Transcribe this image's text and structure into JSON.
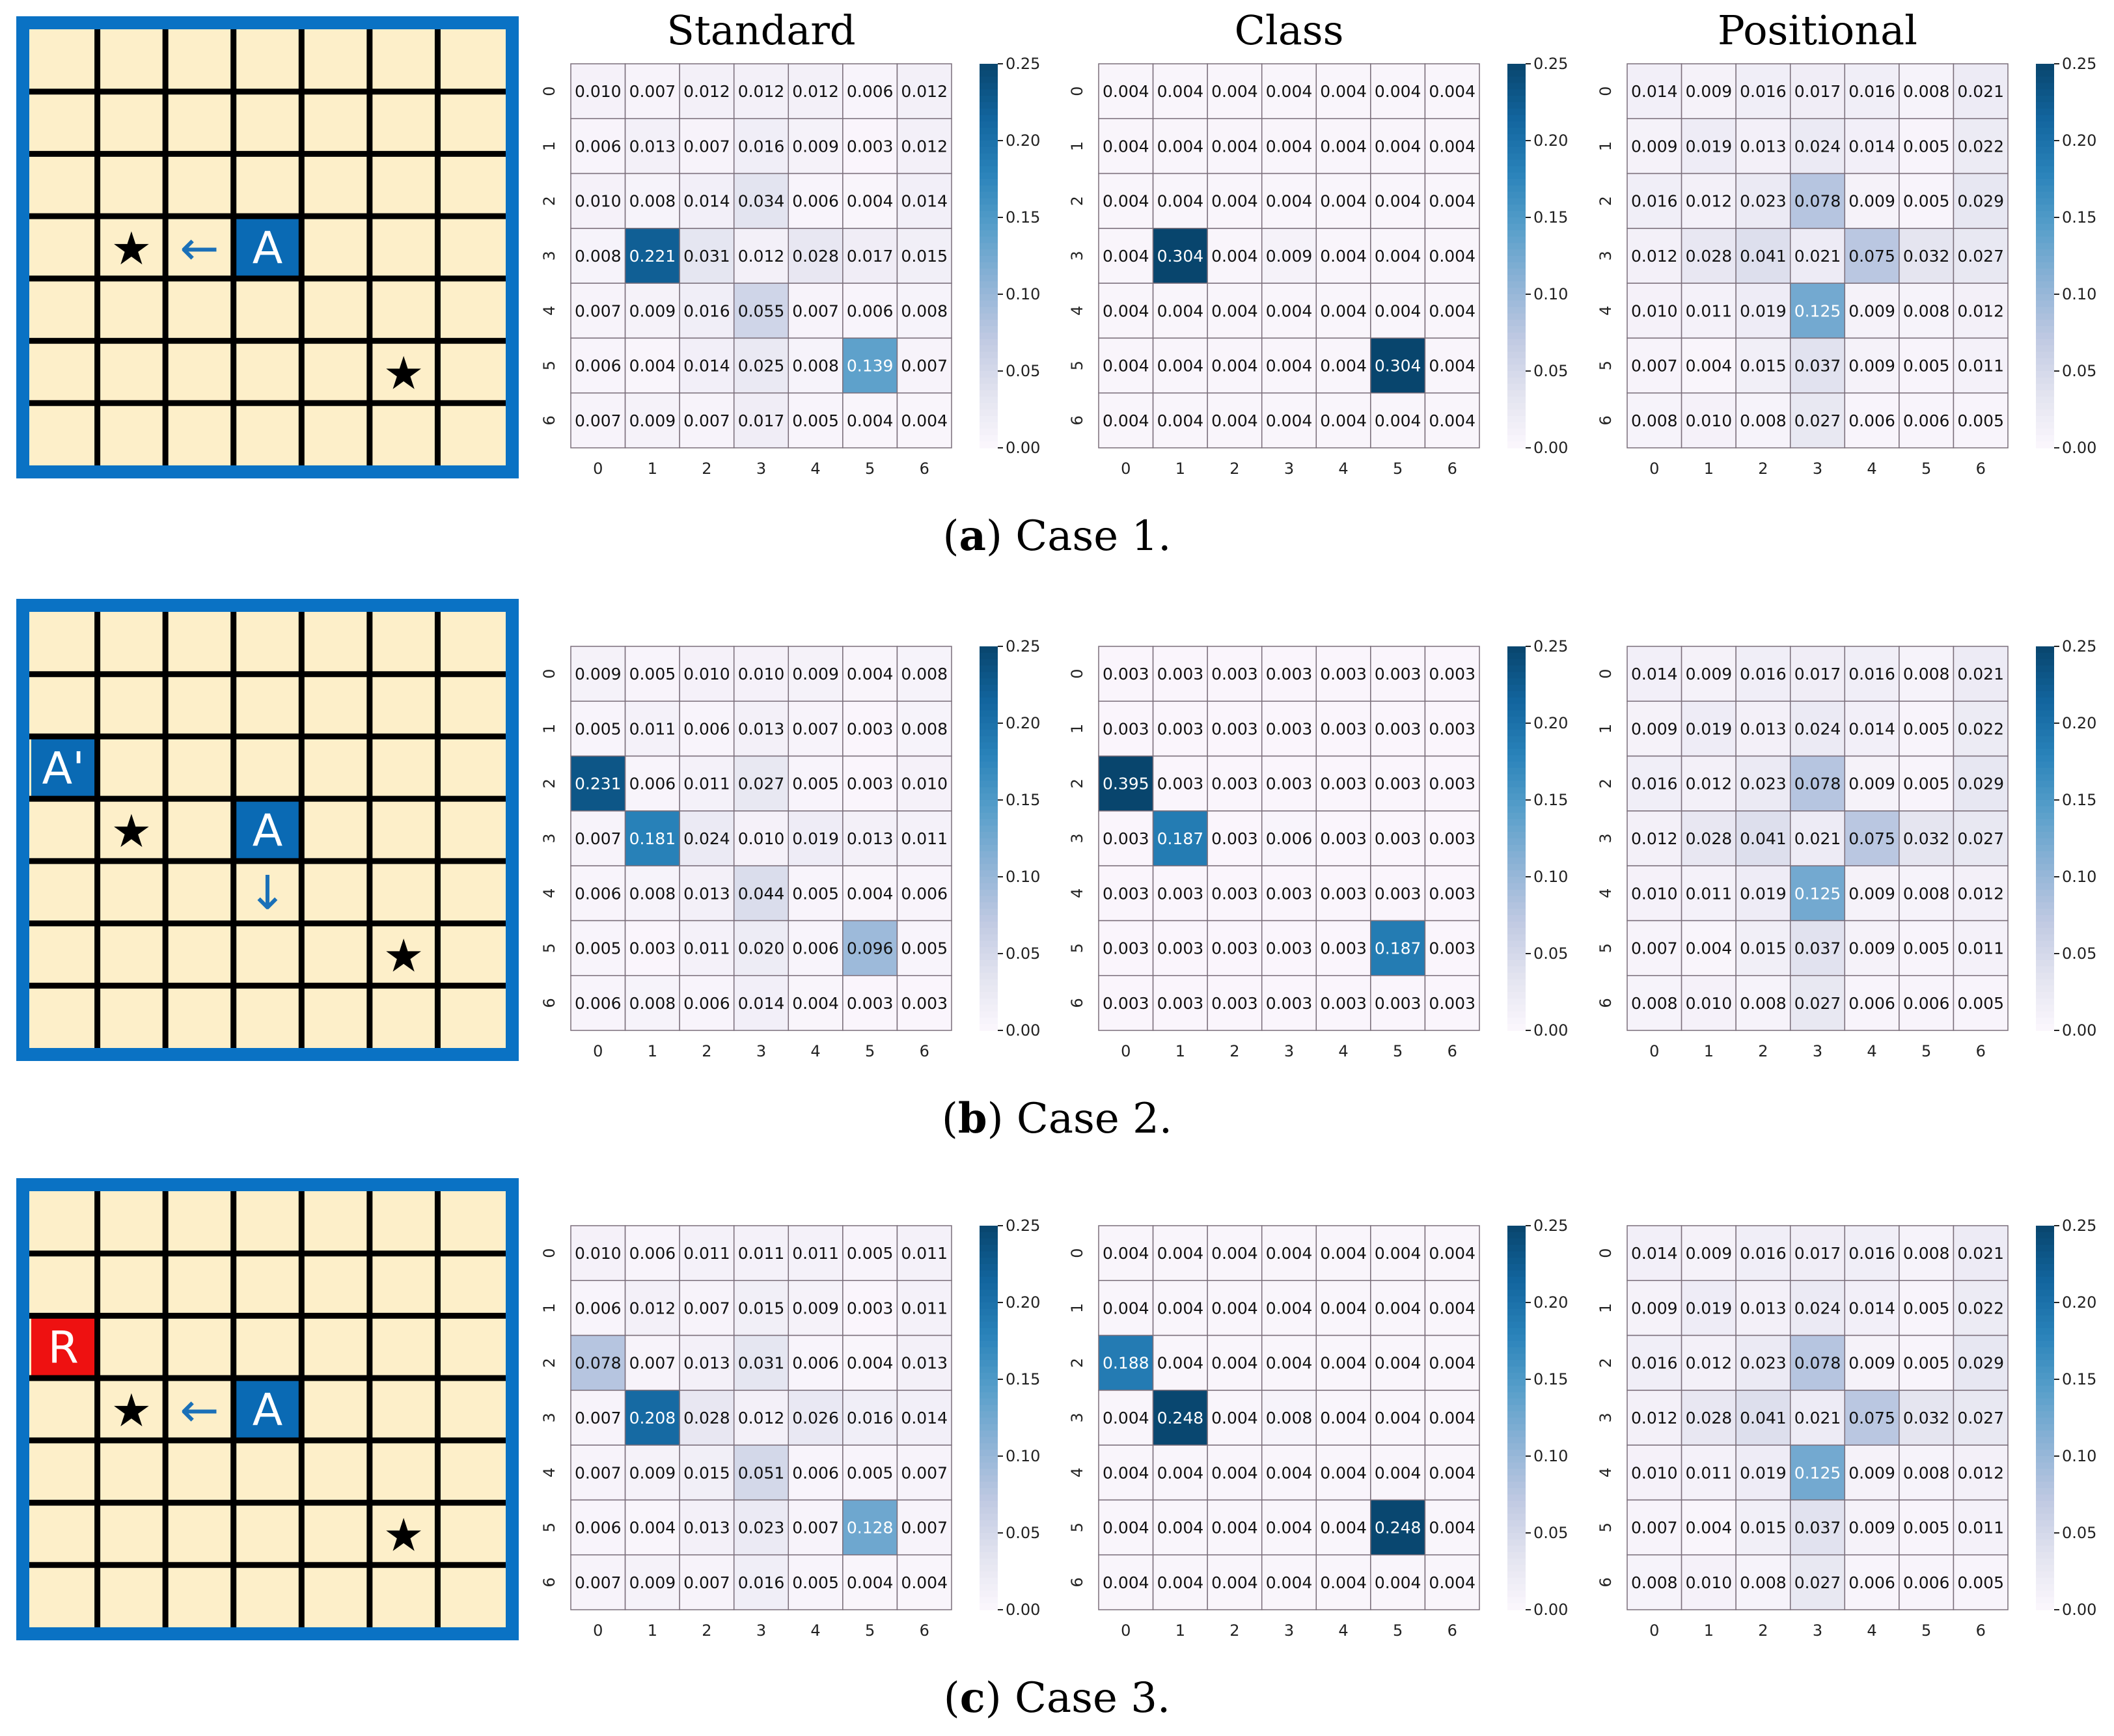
{
  "figure": {
    "column_titles": [
      "Standard",
      "Class",
      "Positional"
    ],
    "colors": {
      "grid_bg": "#fdefc9",
      "grid_border": "#0a72c4",
      "grid_lines": "#000000",
      "agent_fill": "#0a6ab4",
      "arrow": "#1a70b8",
      "reward_fill": "#ee1111",
      "cmap": [
        "#fcf7fd",
        "#e2e3ef",
        "#bfc9e2",
        "#8eb3d6",
        "#589fca",
        "#2a83ba",
        "#12659e",
        "#08456d"
      ]
    },
    "icons": {
      "star": "star-icon",
      "arrow_left": "left-arrow-icon",
      "arrow_down": "down-arrow-icon"
    },
    "cases": [
      {
        "caption_letter": "a",
        "caption_text": " Case 1.",
        "grid": {
          "size": 7,
          "cells": [
            {
              "row": 3,
              "col": 1,
              "kind": "star",
              "label": "★"
            },
            {
              "row": 3,
              "col": 2,
              "kind": "arrow_left",
              "label": "←"
            },
            {
              "row": 3,
              "col": 3,
              "kind": "agent",
              "label": "A"
            },
            {
              "row": 5,
              "col": 5,
              "kind": "star",
              "label": "★"
            }
          ]
        }
      },
      {
        "caption_letter": "b",
        "caption_text": " Case 2.",
        "grid": {
          "size": 7,
          "cells": [
            {
              "row": 2,
              "col": 0,
              "kind": "agent",
              "label": "A'"
            },
            {
              "row": 3,
              "col": 1,
              "kind": "star",
              "label": "★"
            },
            {
              "row": 3,
              "col": 3,
              "kind": "agent",
              "label": "A"
            },
            {
              "row": 4,
              "col": 3,
              "kind": "arrow_down",
              "label": "↓"
            },
            {
              "row": 5,
              "col": 5,
              "kind": "star",
              "label": "★"
            }
          ]
        }
      },
      {
        "caption_letter": "c",
        "caption_text": " Case 3.",
        "grid": {
          "size": 7,
          "cells": [
            {
              "row": 2,
              "col": 0,
              "kind": "reward",
              "label": "R"
            },
            {
              "row": 3,
              "col": 1,
              "kind": "star",
              "label": "★"
            },
            {
              "row": 3,
              "col": 2,
              "kind": "arrow_left",
              "label": "←"
            },
            {
              "row": 3,
              "col": 3,
              "kind": "agent",
              "label": "A"
            },
            {
              "row": 5,
              "col": 5,
              "kind": "star",
              "label": "★"
            }
          ]
        }
      }
    ]
  },
  "chart_data": [
    {
      "type": "heatmap",
      "case": "Case 1",
      "title": "Standard",
      "x_ticks": [
        "0",
        "1",
        "2",
        "3",
        "4",
        "5",
        "6"
      ],
      "y_ticks": [
        "0",
        "1",
        "2",
        "3",
        "4",
        "5",
        "6"
      ],
      "vmin": 0,
      "vmax": 0.25,
      "colorbar_ticks": [
        "0.00",
        "0.05",
        "0.10",
        "0.15",
        "0.20",
        "0.25"
      ],
      "values": [
        [
          "0.010",
          "0.007",
          "0.012",
          "0.012",
          "0.012",
          "0.006",
          "0.012"
        ],
        [
          "0.006",
          "0.013",
          "0.007",
          "0.016",
          "0.009",
          "0.003",
          "0.012"
        ],
        [
          "0.010",
          "0.008",
          "0.014",
          "0.034",
          "0.006",
          "0.004",
          "0.014"
        ],
        [
          "0.008",
          "0.221",
          "0.031",
          "0.012",
          "0.028",
          "0.017",
          "0.015"
        ],
        [
          "0.007",
          "0.009",
          "0.016",
          "0.055",
          "0.007",
          "0.006",
          "0.008"
        ],
        [
          "0.006",
          "0.004",
          "0.014",
          "0.025",
          "0.008",
          "0.139",
          "0.007"
        ],
        [
          "0.007",
          "0.009",
          "0.007",
          "0.017",
          "0.005",
          "0.004",
          "0.004"
        ]
      ]
    },
    {
      "type": "heatmap",
      "case": "Case 1",
      "title": "Class",
      "x_ticks": [
        "0",
        "1",
        "2",
        "3",
        "4",
        "5",
        "6"
      ],
      "y_ticks": [
        "0",
        "1",
        "2",
        "3",
        "4",
        "5",
        "6"
      ],
      "vmin": 0,
      "vmax": 0.25,
      "colorbar_ticks": [
        "0.00",
        "0.05",
        "0.10",
        "0.15",
        "0.20",
        "0.25"
      ],
      "values": [
        [
          "0.004",
          "0.004",
          "0.004",
          "0.004",
          "0.004",
          "0.004",
          "0.004"
        ],
        [
          "0.004",
          "0.004",
          "0.004",
          "0.004",
          "0.004",
          "0.004",
          "0.004"
        ],
        [
          "0.004",
          "0.004",
          "0.004",
          "0.004",
          "0.004",
          "0.004",
          "0.004"
        ],
        [
          "0.004",
          "0.304",
          "0.004",
          "0.009",
          "0.004",
          "0.004",
          "0.004"
        ],
        [
          "0.004",
          "0.004",
          "0.004",
          "0.004",
          "0.004",
          "0.004",
          "0.004"
        ],
        [
          "0.004",
          "0.004",
          "0.004",
          "0.004",
          "0.004",
          "0.304",
          "0.004"
        ],
        [
          "0.004",
          "0.004",
          "0.004",
          "0.004",
          "0.004",
          "0.004",
          "0.004"
        ]
      ]
    },
    {
      "type": "heatmap",
      "case": "Case 1",
      "title": "Positional",
      "x_ticks": [
        "0",
        "1",
        "2",
        "3",
        "4",
        "5",
        "6"
      ],
      "y_ticks": [
        "0",
        "1",
        "2",
        "3",
        "4",
        "5",
        "6"
      ],
      "vmin": 0,
      "vmax": 0.25,
      "colorbar_ticks": [
        "0.00",
        "0.05",
        "0.10",
        "0.15",
        "0.20",
        "0.25"
      ],
      "values": [
        [
          "0.014",
          "0.009",
          "0.016",
          "0.017",
          "0.016",
          "0.008",
          "0.021"
        ],
        [
          "0.009",
          "0.019",
          "0.013",
          "0.024",
          "0.014",
          "0.005",
          "0.022"
        ],
        [
          "0.016",
          "0.012",
          "0.023",
          "0.078",
          "0.009",
          "0.005",
          "0.029"
        ],
        [
          "0.012",
          "0.028",
          "0.041",
          "0.021",
          "0.075",
          "0.032",
          "0.027"
        ],
        [
          "0.010",
          "0.011",
          "0.019",
          "0.125",
          "0.009",
          "0.008",
          "0.012"
        ],
        [
          "0.007",
          "0.004",
          "0.015",
          "0.037",
          "0.009",
          "0.005",
          "0.011"
        ],
        [
          "0.008",
          "0.010",
          "0.008",
          "0.027",
          "0.006",
          "0.006",
          "0.005"
        ]
      ]
    },
    {
      "type": "heatmap",
      "case": "Case 2",
      "title": "Standard",
      "x_ticks": [
        "0",
        "1",
        "2",
        "3",
        "4",
        "5",
        "6"
      ],
      "y_ticks": [
        "0",
        "1",
        "2",
        "3",
        "4",
        "5",
        "6"
      ],
      "vmin": 0,
      "vmax": 0.25,
      "colorbar_ticks": [
        "0.00",
        "0.05",
        "0.10",
        "0.15",
        "0.20",
        "0.25"
      ],
      "values": [
        [
          "0.009",
          "0.005",
          "0.010",
          "0.010",
          "0.009",
          "0.004",
          "0.008"
        ],
        [
          "0.005",
          "0.011",
          "0.006",
          "0.013",
          "0.007",
          "0.003",
          "0.008"
        ],
        [
          "0.231",
          "0.006",
          "0.011",
          "0.027",
          "0.005",
          "0.003",
          "0.010"
        ],
        [
          "0.007",
          "0.181",
          "0.024",
          "0.010",
          "0.019",
          "0.013",
          "0.011"
        ],
        [
          "0.006",
          "0.008",
          "0.013",
          "0.044",
          "0.005",
          "0.004",
          "0.006"
        ],
        [
          "0.005",
          "0.003",
          "0.011",
          "0.020",
          "0.006",
          "0.096",
          "0.005"
        ],
        [
          "0.006",
          "0.008",
          "0.006",
          "0.014",
          "0.004",
          "0.003",
          "0.003"
        ]
      ]
    },
    {
      "type": "heatmap",
      "case": "Case 2",
      "title": "Class",
      "x_ticks": [
        "0",
        "1",
        "2",
        "3",
        "4",
        "5",
        "6"
      ],
      "y_ticks": [
        "0",
        "1",
        "2",
        "3",
        "4",
        "5",
        "6"
      ],
      "vmin": 0,
      "vmax": 0.25,
      "colorbar_ticks": [
        "0.00",
        "0.05",
        "0.10",
        "0.15",
        "0.20",
        "0.25"
      ],
      "values": [
        [
          "0.003",
          "0.003",
          "0.003",
          "0.003",
          "0.003",
          "0.003",
          "0.003"
        ],
        [
          "0.003",
          "0.003",
          "0.003",
          "0.003",
          "0.003",
          "0.003",
          "0.003"
        ],
        [
          "0.395",
          "0.003",
          "0.003",
          "0.003",
          "0.003",
          "0.003",
          "0.003"
        ],
        [
          "0.003",
          "0.187",
          "0.003",
          "0.006",
          "0.003",
          "0.003",
          "0.003"
        ],
        [
          "0.003",
          "0.003",
          "0.003",
          "0.003",
          "0.003",
          "0.003",
          "0.003"
        ],
        [
          "0.003",
          "0.003",
          "0.003",
          "0.003",
          "0.003",
          "0.187",
          "0.003"
        ],
        [
          "0.003",
          "0.003",
          "0.003",
          "0.003",
          "0.003",
          "0.003",
          "0.003"
        ]
      ]
    },
    {
      "type": "heatmap",
      "case": "Case 2",
      "title": "Positional",
      "x_ticks": [
        "0",
        "1",
        "2",
        "3",
        "4",
        "5",
        "6"
      ],
      "y_ticks": [
        "0",
        "1",
        "2",
        "3",
        "4",
        "5",
        "6"
      ],
      "vmin": 0,
      "vmax": 0.25,
      "colorbar_ticks": [
        "0.00",
        "0.05",
        "0.10",
        "0.15",
        "0.20",
        "0.25"
      ],
      "values": [
        [
          "0.014",
          "0.009",
          "0.016",
          "0.017",
          "0.016",
          "0.008",
          "0.021"
        ],
        [
          "0.009",
          "0.019",
          "0.013",
          "0.024",
          "0.014",
          "0.005",
          "0.022"
        ],
        [
          "0.016",
          "0.012",
          "0.023",
          "0.078",
          "0.009",
          "0.005",
          "0.029"
        ],
        [
          "0.012",
          "0.028",
          "0.041",
          "0.021",
          "0.075",
          "0.032",
          "0.027"
        ],
        [
          "0.010",
          "0.011",
          "0.019",
          "0.125",
          "0.009",
          "0.008",
          "0.012"
        ],
        [
          "0.007",
          "0.004",
          "0.015",
          "0.037",
          "0.009",
          "0.005",
          "0.011"
        ],
        [
          "0.008",
          "0.010",
          "0.008",
          "0.027",
          "0.006",
          "0.006",
          "0.005"
        ]
      ]
    },
    {
      "type": "heatmap",
      "case": "Case 3",
      "title": "Standard",
      "x_ticks": [
        "0",
        "1",
        "2",
        "3",
        "4",
        "5",
        "6"
      ],
      "y_ticks": [
        "0",
        "1",
        "2",
        "3",
        "4",
        "5",
        "6"
      ],
      "vmin": 0,
      "vmax": 0.25,
      "colorbar_ticks": [
        "0.00",
        "0.05",
        "0.10",
        "0.15",
        "0.20",
        "0.25"
      ],
      "values": [
        [
          "0.010",
          "0.006",
          "0.011",
          "0.011",
          "0.011",
          "0.005",
          "0.011"
        ],
        [
          "0.006",
          "0.012",
          "0.007",
          "0.015",
          "0.009",
          "0.003",
          "0.011"
        ],
        [
          "0.078",
          "0.007",
          "0.013",
          "0.031",
          "0.006",
          "0.004",
          "0.013"
        ],
        [
          "0.007",
          "0.208",
          "0.028",
          "0.012",
          "0.026",
          "0.016",
          "0.014"
        ],
        [
          "0.007",
          "0.009",
          "0.015",
          "0.051",
          "0.006",
          "0.005",
          "0.007"
        ],
        [
          "0.006",
          "0.004",
          "0.013",
          "0.023",
          "0.007",
          "0.128",
          "0.007"
        ],
        [
          "0.007",
          "0.009",
          "0.007",
          "0.016",
          "0.005",
          "0.004",
          "0.004"
        ]
      ]
    },
    {
      "type": "heatmap",
      "case": "Case 3",
      "title": "Class",
      "x_ticks": [
        "0",
        "1",
        "2",
        "3",
        "4",
        "5",
        "6"
      ],
      "y_ticks": [
        "0",
        "1",
        "2",
        "3",
        "4",
        "5",
        "6"
      ],
      "vmin": 0,
      "vmax": 0.25,
      "colorbar_ticks": [
        "0.00",
        "0.05",
        "0.10",
        "0.15",
        "0.20",
        "0.25"
      ],
      "values": [
        [
          "0.004",
          "0.004",
          "0.004",
          "0.004",
          "0.004",
          "0.004",
          "0.004"
        ],
        [
          "0.004",
          "0.004",
          "0.004",
          "0.004",
          "0.004",
          "0.004",
          "0.004"
        ],
        [
          "0.188",
          "0.004",
          "0.004",
          "0.004",
          "0.004",
          "0.004",
          "0.004"
        ],
        [
          "0.004",
          "0.248",
          "0.004",
          "0.008",
          "0.004",
          "0.004",
          "0.004"
        ],
        [
          "0.004",
          "0.004",
          "0.004",
          "0.004",
          "0.004",
          "0.004",
          "0.004"
        ],
        [
          "0.004",
          "0.004",
          "0.004",
          "0.004",
          "0.004",
          "0.248",
          "0.004"
        ],
        [
          "0.004",
          "0.004",
          "0.004",
          "0.004",
          "0.004",
          "0.004",
          "0.004"
        ]
      ]
    },
    {
      "type": "heatmap",
      "case": "Case 3",
      "title": "Positional",
      "x_ticks": [
        "0",
        "1",
        "2",
        "3",
        "4",
        "5",
        "6"
      ],
      "y_ticks": [
        "0",
        "1",
        "2",
        "3",
        "4",
        "5",
        "6"
      ],
      "vmin": 0,
      "vmax": 0.25,
      "colorbar_ticks": [
        "0.00",
        "0.05",
        "0.10",
        "0.15",
        "0.20",
        "0.25"
      ],
      "values": [
        [
          "0.014",
          "0.009",
          "0.016",
          "0.017",
          "0.016",
          "0.008",
          "0.021"
        ],
        [
          "0.009",
          "0.019",
          "0.013",
          "0.024",
          "0.014",
          "0.005",
          "0.022"
        ],
        [
          "0.016",
          "0.012",
          "0.023",
          "0.078",
          "0.009",
          "0.005",
          "0.029"
        ],
        [
          "0.012",
          "0.028",
          "0.041",
          "0.021",
          "0.075",
          "0.032",
          "0.027"
        ],
        [
          "0.010",
          "0.011",
          "0.019",
          "0.125",
          "0.009",
          "0.008",
          "0.012"
        ],
        [
          "0.007",
          "0.004",
          "0.015",
          "0.037",
          "0.009",
          "0.005",
          "0.011"
        ],
        [
          "0.008",
          "0.010",
          "0.008",
          "0.027",
          "0.006",
          "0.006",
          "0.005"
        ]
      ]
    }
  ]
}
